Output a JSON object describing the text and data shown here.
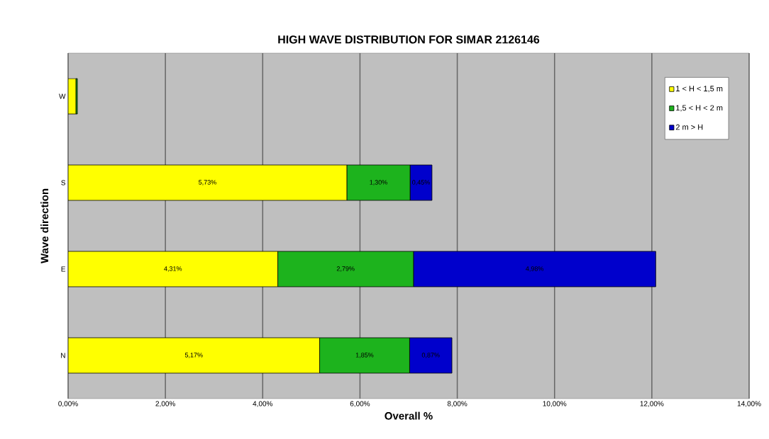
{
  "chart_data": {
    "type": "bar",
    "orientation": "horizontal",
    "stacked": true,
    "title": "HIGH WAVE DISTRIBUTION FOR SIMAR 2126146",
    "xlabel": "Overall %",
    "ylabel": "Wave direction",
    "categories": [
      "W",
      "S",
      "E",
      "N"
    ],
    "series": [
      {
        "name": "1 < H < 1,5 m",
        "color": "#ffff00",
        "values": [
          0.16,
          5.73,
          4.31,
          5.17
        ],
        "value_labels": [
          null,
          "5,73%",
          "4,31%",
          "5,17%"
        ]
      },
      {
        "name": "1,5 < H < 2 m",
        "color": "#1db31d",
        "values": [
          0.03,
          1.3,
          2.79,
          1.85
        ],
        "value_labels": [
          null,
          "1,30%",
          "2,79%",
          "1,85%"
        ]
      },
      {
        "name": "2 m > H",
        "color": "#0000cc",
        "values": [
          null,
          0.45,
          4.98,
          0.87
        ],
        "value_labels": [
          null,
          "0,45%",
          "4,98%",
          "0,87%"
        ]
      }
    ],
    "xlim": [
      0,
      14
    ],
    "xticks": [
      {
        "value": 0,
        "label": "0,00%"
      },
      {
        "value": 2,
        "label": "2,00%"
      },
      {
        "value": 4,
        "label": "4,00%"
      },
      {
        "value": 6,
        "label": "6,00%"
      },
      {
        "value": 8,
        "label": "8,00%"
      },
      {
        "value": 10,
        "label": "10,00%"
      },
      {
        "value": 12,
        "label": "12,00%"
      },
      {
        "value": 14,
        "label": "14,00%"
      }
    ],
    "grid": "x",
    "legend": "top right"
  }
}
